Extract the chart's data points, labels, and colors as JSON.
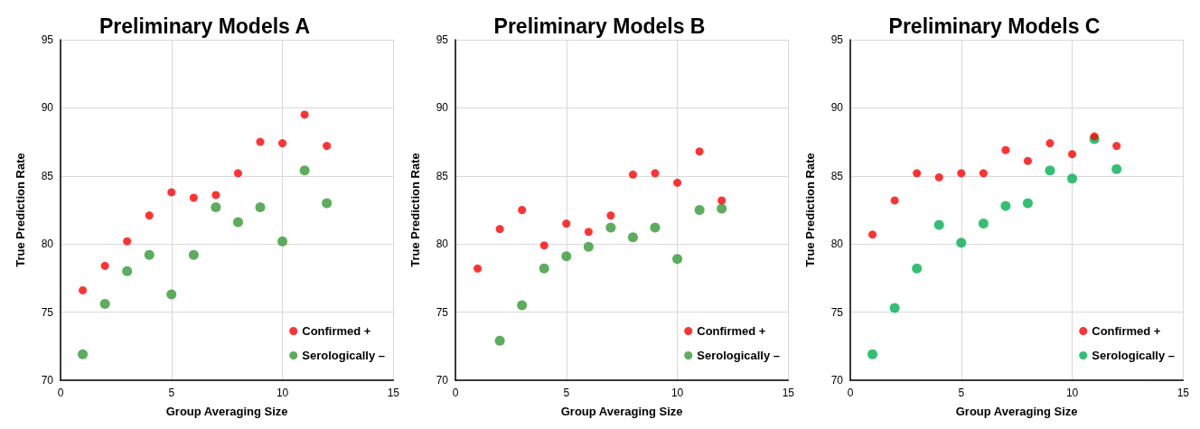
{
  "chart_data": [
    {
      "type": "scatter",
      "title": "Preliminary Models A",
      "xlabel": "Group Averaging Size",
      "ylabel": "True Prediction Rate",
      "x": [
        1,
        2,
        3,
        4,
        5,
        6,
        7,
        8,
        9,
        10,
        11,
        12
      ],
      "xlim": [
        0,
        15
      ],
      "xticks": [
        0,
        5,
        10,
        15
      ],
      "ylim": [
        70,
        95
      ],
      "yticks": [
        70,
        75,
        80,
        85,
        90,
        95
      ],
      "grid": true,
      "legend": "bottom right",
      "marker": "circle",
      "series": [
        {
          "name": "Confirmed +",
          "color": "#ff0000",
          "values": [
            76.6,
            78.4,
            80.2,
            82.1,
            83.8,
            83.4,
            83.6,
            85.2,
            87.5,
            87.4,
            89.5,
            87.2
          ]
        },
        {
          "name": "Serologically –",
          "color": "#339933",
          "values": [
            71.9,
            75.6,
            78.0,
            79.2,
            76.3,
            79.2,
            82.7,
            81.6,
            82.7,
            80.2,
            85.4,
            83.0
          ]
        }
      ]
    },
    {
      "type": "scatter",
      "title": "Preliminary Models B",
      "xlabel": "Group Averaging Size",
      "ylabel": "True Prediction Rate",
      "x": [
        1,
        2,
        3,
        4,
        5,
        6,
        7,
        8,
        9,
        10,
        11,
        12
      ],
      "xlim": [
        0,
        15
      ],
      "xticks": [
        0,
        5,
        10,
        15
      ],
      "ylim": [
        70,
        95
      ],
      "yticks": [
        70,
        75,
        80,
        85,
        90,
        95
      ],
      "grid": true,
      "legend": "bottom right",
      "marker": "circle",
      "series": [
        {
          "name": "Confirmed +",
          "color": "#ff0000",
          "values": [
            78.2,
            81.1,
            82.5,
            79.9,
            81.5,
            80.9,
            82.1,
            85.1,
            85.2,
            84.5,
            86.8,
            83.2
          ]
        },
        {
          "name": "Serologically –",
          "color": "#339933",
          "values": [
            null,
            72.9,
            75.5,
            78.2,
            79.1,
            79.8,
            81.2,
            80.5,
            81.2,
            78.9,
            82.5,
            82.6
          ]
        }
      ]
    },
    {
      "type": "scatter",
      "title": "Preliminary Models C",
      "xlabel": "Group Averaging Size",
      "ylabel": "True Prediction Rate",
      "x": [
        1,
        2,
        3,
        4,
        5,
        6,
        7,
        8,
        9,
        10,
        11,
        12
      ],
      "xlim": [
        0,
        15
      ],
      "xticks": [
        0,
        5,
        10,
        15
      ],
      "ylim": [
        70,
        95
      ],
      "yticks": [
        70,
        75,
        80,
        85,
        90,
        95
      ],
      "grid": true,
      "legend": "bottom right",
      "marker": "circle",
      "series": [
        {
          "name": "Confirmed +",
          "color": "#ff0000",
          "values": [
            80.7,
            83.2,
            85.2,
            84.9,
            85.2,
            85.2,
            86.9,
            86.1,
            87.4,
            86.6,
            87.9,
            87.2
          ]
        },
        {
          "name": "Serologically –",
          "color": "#00b050",
          "values": [
            71.9,
            75.3,
            78.2,
            81.4,
            80.1,
            81.5,
            82.8,
            83.0,
            85.4,
            84.8,
            87.7,
            85.5
          ]
        }
      ]
    }
  ]
}
